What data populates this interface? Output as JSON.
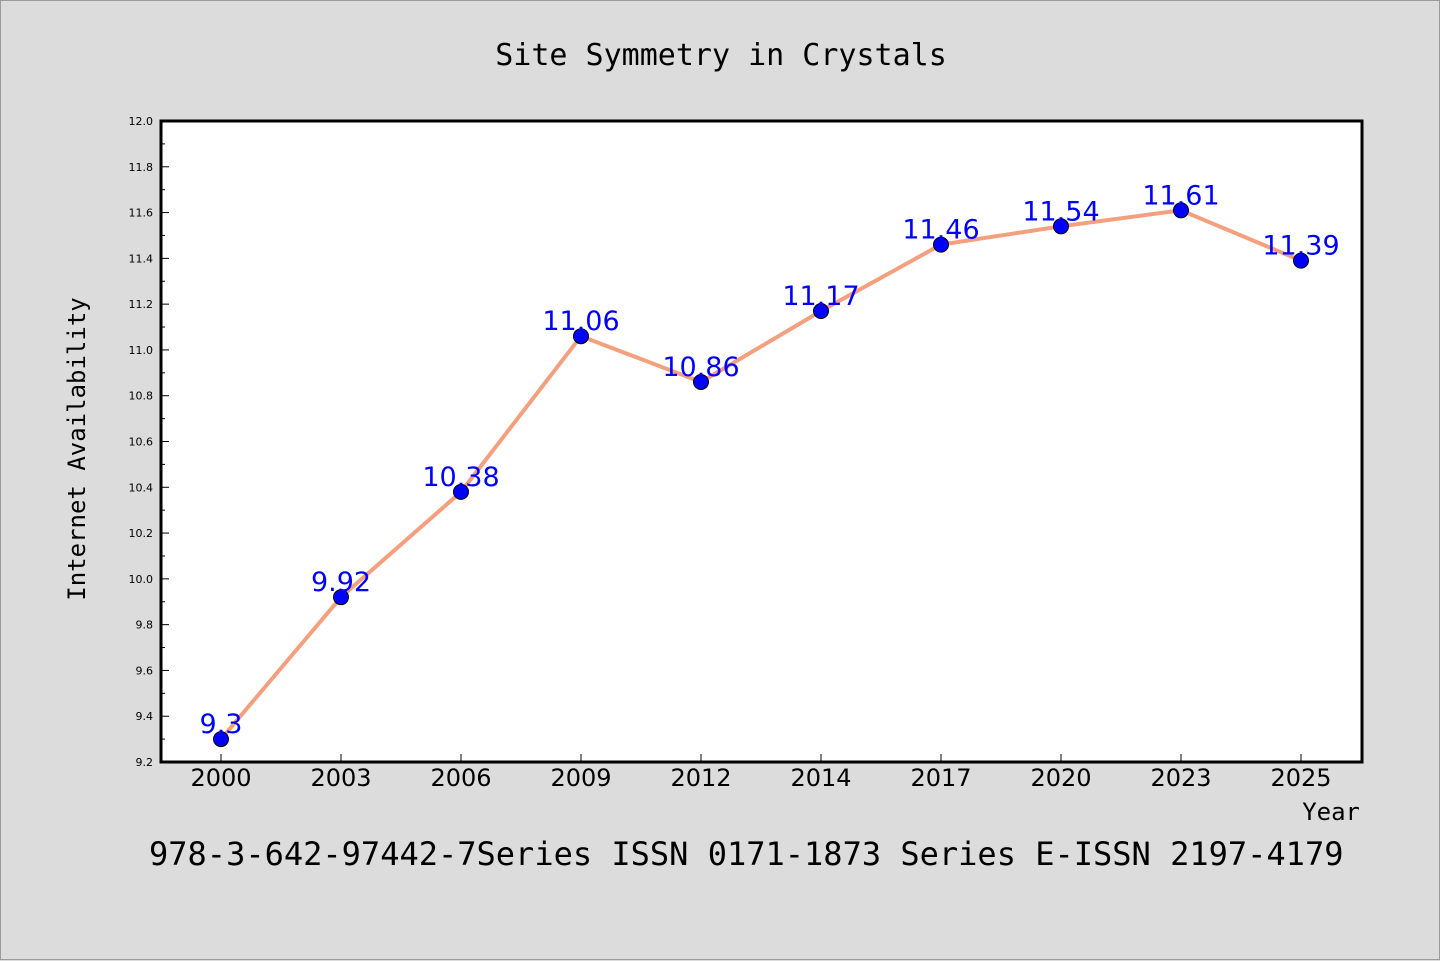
{
  "chart_data": {
    "type": "line",
    "title": "Site Symmetry in Crystals",
    "xlabel": "Year",
    "ylabel": "Internet Availability",
    "categories": [
      "2000",
      "2003",
      "2006",
      "2009",
      "2012",
      "2014",
      "2017",
      "2020",
      "2023",
      "2025"
    ],
    "values": [
      9.3,
      9.92,
      10.38,
      11.06,
      10.86,
      11.17,
      11.46,
      11.54,
      11.61,
      11.39
    ],
    "value_labels": [
      "9.3",
      "9.92",
      "10.38",
      "11.06",
      "10.86",
      "11.17",
      "11.46",
      "11.54",
      "11.61",
      "11.39"
    ],
    "ylim": [
      9.2,
      12.0
    ],
    "yticks": [
      "9.2",
      "9.4",
      "9.6",
      "9.8",
      "10.0",
      "10.2",
      "10.4",
      "10.6",
      "10.8",
      "11.0",
      "11.2",
      "11.4",
      "11.6",
      "11.8",
      "12.0"
    ],
    "grid": false,
    "legend": "none",
    "line_color": "#f4a07e",
    "marker_color": "#0000ff",
    "label_color": "#0000ff"
  },
  "footer": {
    "text": "978-3-642-97442-7Series ISSN 0171-1873 Series E-ISSN 2197-4179"
  }
}
